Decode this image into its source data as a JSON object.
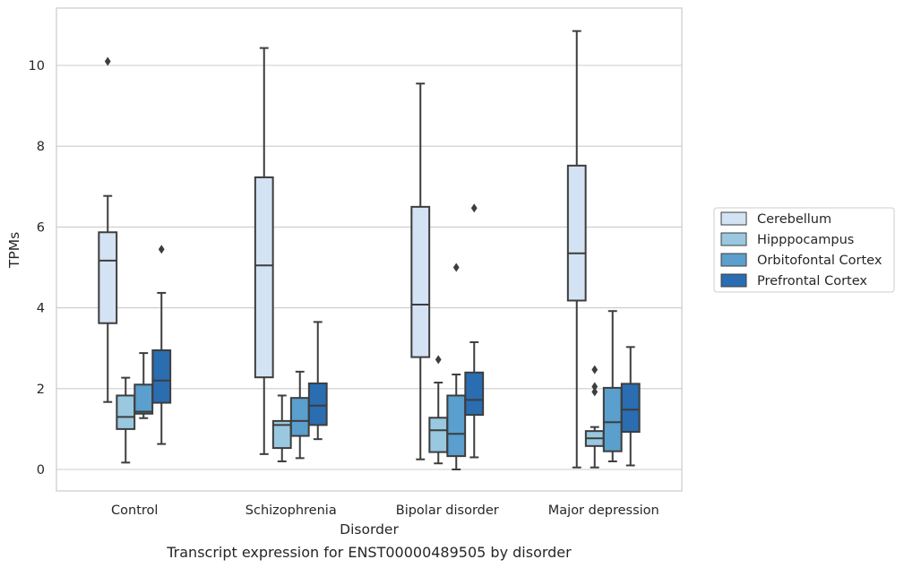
{
  "chart_data": {
    "type": "box",
    "xlabel": "Disorder",
    "ylabel": "TPMs",
    "caption": "Transcript expression for ENST00000489505 by disorder",
    "ylim": [
      -0.5,
      11.3
    ],
    "yticks": [
      0,
      2,
      4,
      6,
      8,
      10
    ],
    "grid": "horizontal",
    "legend_position": "right",
    "categories": [
      "Control",
      "Schizophrenia",
      "Bipolar disorder",
      "Major depression"
    ],
    "series": [
      {
        "name": "Cerebellum",
        "color": "#d3e3f3",
        "boxes": [
          {
            "whisker_low": 1.67,
            "q1": 3.62,
            "median": 5.17,
            "q3": 5.87,
            "whisker_high": 6.77,
            "outliers": [
              10.1
            ]
          },
          {
            "whisker_low": 0.38,
            "q1": 2.28,
            "median": 5.05,
            "q3": 7.23,
            "whisker_high": 10.43,
            "outliers": []
          },
          {
            "whisker_low": 0.25,
            "q1": 2.78,
            "median": 4.08,
            "q3": 6.5,
            "whisker_high": 9.55,
            "outliers": []
          },
          {
            "whisker_low": 0.05,
            "q1": 4.18,
            "median": 5.35,
            "q3": 7.52,
            "whisker_high": 10.85,
            "outliers": []
          }
        ]
      },
      {
        "name": "Hipppocampus",
        "color": "#9ac8e0",
        "boxes": [
          {
            "whisker_low": 0.17,
            "q1": 1.0,
            "median": 1.3,
            "q3": 1.83,
            "whisker_high": 2.27,
            "outliers": []
          },
          {
            "whisker_low": 0.2,
            "q1": 0.53,
            "median": 1.1,
            "q3": 1.2,
            "whisker_high": 1.83,
            "outliers": []
          },
          {
            "whisker_low": 0.15,
            "q1": 0.43,
            "median": 0.97,
            "q3": 1.28,
            "whisker_high": 2.15,
            "outliers": [
              2.72
            ]
          },
          {
            "whisker_low": 0.05,
            "q1": 0.58,
            "median": 0.77,
            "q3": 0.95,
            "whisker_high": 1.05,
            "outliers": [
              2.47,
              2.05,
              1.92
            ]
          }
        ]
      },
      {
        "name": "Orbitofontal Cortex",
        "color": "#5a9fcd",
        "boxes": [
          {
            "whisker_low": 1.27,
            "q1": 1.38,
            "median": 1.43,
            "q3": 2.1,
            "whisker_high": 2.88,
            "outliers": []
          },
          {
            "whisker_low": 0.28,
            "q1": 0.83,
            "median": 1.2,
            "q3": 1.77,
            "whisker_high": 2.42,
            "outliers": []
          },
          {
            "whisker_low": 0.0,
            "q1": 0.33,
            "median": 0.88,
            "q3": 1.83,
            "whisker_high": 2.35,
            "outliers": [
              5.0
            ]
          },
          {
            "whisker_low": 0.2,
            "q1": 0.45,
            "median": 1.17,
            "q3": 2.02,
            "whisker_high": 3.92,
            "outliers": []
          }
        ]
      },
      {
        "name": "Prefrontal Cortex",
        "color": "#2a6db1",
        "boxes": [
          {
            "whisker_low": 0.63,
            "q1": 1.65,
            "median": 2.2,
            "q3": 2.95,
            "whisker_high": 4.37,
            "outliers": [
              5.45
            ]
          },
          {
            "whisker_low": 0.75,
            "q1": 1.1,
            "median": 1.58,
            "q3": 2.13,
            "whisker_high": 3.65,
            "outliers": []
          },
          {
            "whisker_low": 0.3,
            "q1": 1.35,
            "median": 1.72,
            "q3": 2.4,
            "whisker_high": 3.15,
            "outliers": [
              6.47
            ]
          },
          {
            "whisker_low": 0.1,
            "q1": 0.93,
            "median": 1.48,
            "q3": 2.12,
            "whisker_high": 3.03,
            "outliers": []
          }
        ]
      }
    ]
  }
}
